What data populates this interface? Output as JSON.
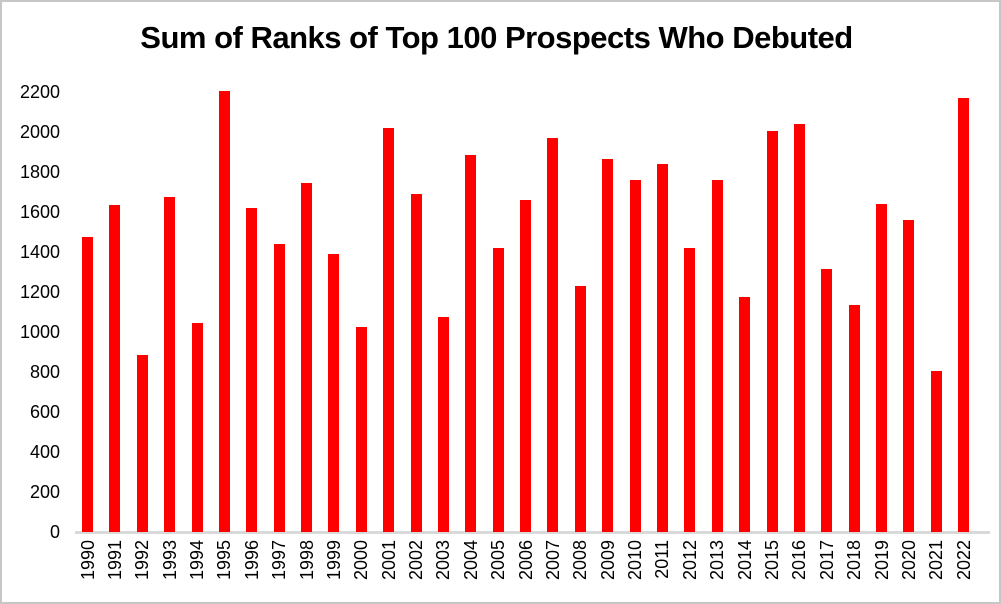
{
  "title": "Sum of Ranks of Top 100 Prospects Who Debuted",
  "colors": {
    "bar": "#ff0000",
    "axis_line": "#d9d9d9",
    "text": "#000000",
    "frame_border": "#c6c6c6",
    "background": "#ffffff"
  },
  "chart_data": {
    "type": "bar",
    "title": "Sum of Ranks of Top 100 Prospects Who Debuted",
    "xlabel": "",
    "ylabel": "",
    "categories": [
      "1990",
      "1991",
      "1992",
      "1993",
      "1994",
      "1995",
      "1996",
      "1997",
      "1998",
      "1999",
      "2000",
      "2001",
      "2002",
      "2003",
      "2004",
      "2005",
      "2006",
      "2007",
      "2008",
      "2009",
      "2010",
      "2011",
      "2012",
      "2013",
      "2014",
      "2015",
      "2016",
      "2017",
      "2018",
      "2019",
      "2020",
      "2021",
      "2022"
    ],
    "values": [
      1475,
      1635,
      885,
      1675,
      1045,
      2205,
      1620,
      1440,
      1745,
      1390,
      1025,
      2020,
      1690,
      1075,
      1885,
      1420,
      1660,
      1970,
      1230,
      1865,
      1760,
      1840,
      1420,
      1760,
      1175,
      2005,
      2040,
      1315,
      1135,
      1640,
      1560,
      805,
      2170
    ],
    "ylim": [
      0,
      2200
    ],
    "yticks": [
      0,
      200,
      400,
      600,
      800,
      1000,
      1200,
      1400,
      1600,
      1800,
      2000,
      2200
    ],
    "grid": false,
    "legend": "none",
    "bar_color": "#ff0000",
    "x_tick_rotation_degrees": 90
  }
}
